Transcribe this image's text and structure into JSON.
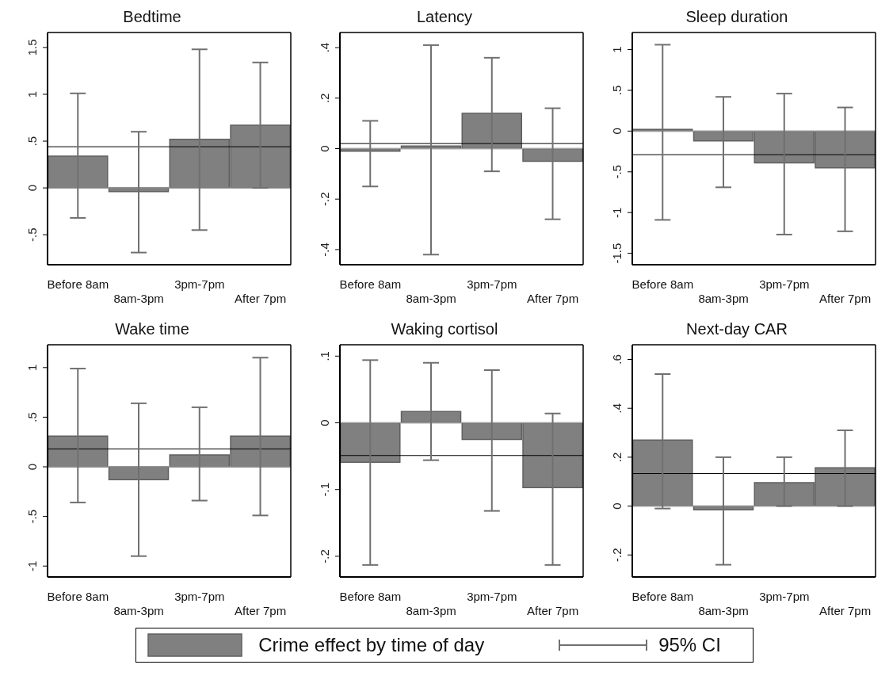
{
  "chart_data": [
    {
      "type": "bar",
      "title": "Bedtime",
      "categories": [
        "Before 8am",
        "8am-3pm",
        "3pm-7pm",
        "After 7pm"
      ],
      "series": [
        {
          "color": "#808080",
          "values": [
            0.34,
            -0.04,
            0.52,
            0.67
          ],
          "errors": [
            [
              -0.32,
              1.01
            ],
            [
              -0.69,
              0.6
            ],
            [
              -0.45,
              1.48
            ],
            [
              0.0,
              1.34
            ]
          ]
        }
      ],
      "ylim": [
        -0.82,
        1.66
      ],
      "yticks": [
        {
          "value": -0.5,
          "label": "-.5"
        },
        0,
        {
          "value": 0.5,
          "label": ".5"
        },
        1,
        1.5
      ],
      "ref_lines": [
        {
          "axis": "y",
          "value": 0,
          "color": "#a0a0a0"
        },
        {
          "axis": "y",
          "value": 0.44,
          "color": "#000000"
        }
      ]
    },
    {
      "type": "bar",
      "title": "Latency",
      "categories": [
        "Before 8am",
        "8am-3pm",
        "3pm-7pm",
        "After 7pm"
      ],
      "series": [
        {
          "color": "#808080",
          "values": [
            -0.01,
            0.01,
            0.14,
            -0.05
          ],
          "errors": [
            [
              -0.15,
              0.11
            ],
            [
              -0.42,
              0.41
            ],
            [
              -0.09,
              0.36
            ],
            [
              -0.28,
              0.16
            ]
          ]
        }
      ],
      "ylim": [
        -0.46,
        0.46
      ],
      "yticks": [
        {
          "value": -0.4,
          "label": "-.4"
        },
        {
          "value": -0.2,
          "label": "-.2"
        },
        0,
        {
          "value": 0.2,
          "label": ".2"
        },
        {
          "value": 0.4,
          "label": ".4"
        }
      ],
      "ref_lines": [
        {
          "axis": "y",
          "value": 0,
          "color": "#a0a0a0"
        },
        {
          "axis": "y",
          "value": 0.02,
          "color": "#000000"
        }
      ]
    },
    {
      "type": "bar",
      "title": "Sleep duration",
      "categories": [
        "Before 8am",
        "8am-3pm",
        "3pm-7pm",
        "After 7pm"
      ],
      "series": [
        {
          "color": "#808080",
          "values": [
            0.02,
            -0.12,
            -0.39,
            -0.45
          ],
          "errors": [
            [
              -1.09,
              1.06
            ],
            [
              -0.69,
              0.42
            ],
            [
              -1.27,
              0.46
            ],
            [
              -1.23,
              0.29
            ]
          ]
        }
      ],
      "ylim": [
        -1.64,
        1.21
      ],
      "yticks": [
        {
          "value": -1.5,
          "label": "-1.5"
        },
        {
          "value": -1,
          "label": "-1"
        },
        {
          "value": -0.5,
          "label": "-.5"
        },
        0,
        {
          "value": 0.5,
          "label": ".5"
        },
        1
      ],
      "ref_lines": [
        {
          "axis": "y",
          "value": 0,
          "color": "#a0a0a0"
        },
        {
          "axis": "y",
          "value": -0.29,
          "color": "#000000"
        }
      ]
    },
    {
      "type": "bar",
      "title": "Wake time",
      "categories": [
        "Before 8am",
        "8am-3pm",
        "3pm-7pm",
        "After 7pm"
      ],
      "series": [
        {
          "color": "#808080",
          "values": [
            0.31,
            -0.13,
            0.12,
            0.31
          ],
          "errors": [
            [
              -0.36,
              0.99
            ],
            [
              -0.9,
              0.64
            ],
            [
              -0.34,
              0.6
            ],
            [
              -0.49,
              1.1
            ]
          ]
        }
      ],
      "ylim": [
        -1.11,
        1.23
      ],
      "yticks": [
        {
          "value": -1,
          "label": "-1"
        },
        {
          "value": -0.5,
          "label": "-.5"
        },
        0,
        {
          "value": 0.5,
          "label": ".5"
        },
        1
      ],
      "ref_lines": [
        {
          "axis": "y",
          "value": 0,
          "color": "#a0a0a0"
        },
        {
          "axis": "y",
          "value": 0.18,
          "color": "#000000"
        }
      ]
    },
    {
      "type": "bar",
      "title": "Waking cortisol",
      "categories": [
        "Before 8am",
        "8am-3pm",
        "3pm-7pm",
        "After 7pm"
      ],
      "series": [
        {
          "name": "Crime effect by time of day",
          "color": "#808080",
          "values": [
            -0.059,
            0.017,
            -0.025,
            -0.097
          ],
          "errors": [
            [
              -0.213,
              0.094
            ],
            [
              -0.056,
              0.09
            ],
            [
              -0.132,
              0.079
            ],
            [
              -0.213,
              0.014
            ]
          ]
        }
      ],
      "ylim": [
        -0.231,
        0.117
      ],
      "yticks": [
        {
          "value": -0.2,
          "label": "-.2"
        },
        {
          "value": -0.1,
          "label": "-.1"
        },
        0,
        {
          "value": 0.1,
          "label": ".1"
        }
      ],
      "ref_lines": [
        {
          "axis": "y",
          "value": 0,
          "color": "#a0a0a0"
        },
        {
          "axis": "y",
          "value": -0.049,
          "color": "#000000"
        }
      ],
      "legend": "bottom",
      "annotations": [
        "95% CI"
      ]
    },
    {
      "type": "bar",
      "title": "Next-day CAR",
      "categories": [
        "Before 8am",
        "8am-3pm",
        "3pm-7pm",
        "After 7pm"
      ],
      "series": [
        {
          "color": "#808080",
          "values": [
            0.27,
            -0.015,
            0.096,
            0.157
          ],
          "errors": [
            [
              -0.01,
              0.54
            ],
            [
              -0.24,
              0.2
            ],
            [
              0.0,
              0.2
            ],
            [
              0.0,
              0.31
            ]
          ]
        }
      ],
      "ylim": [
        -0.29,
        0.66
      ],
      "yticks": [
        {
          "value": -0.2,
          "label": "-.2"
        },
        0,
        {
          "value": 0.2,
          "label": ".2"
        },
        {
          "value": 0.4,
          "label": ".4"
        },
        {
          "value": 0.6,
          "label": ".6"
        }
      ],
      "ref_lines": [
        {
          "axis": "y",
          "value": 0,
          "color": "#a0a0a0"
        },
        {
          "axis": "y",
          "value": 0.133,
          "color": "#000000"
        }
      ]
    }
  ]
}
